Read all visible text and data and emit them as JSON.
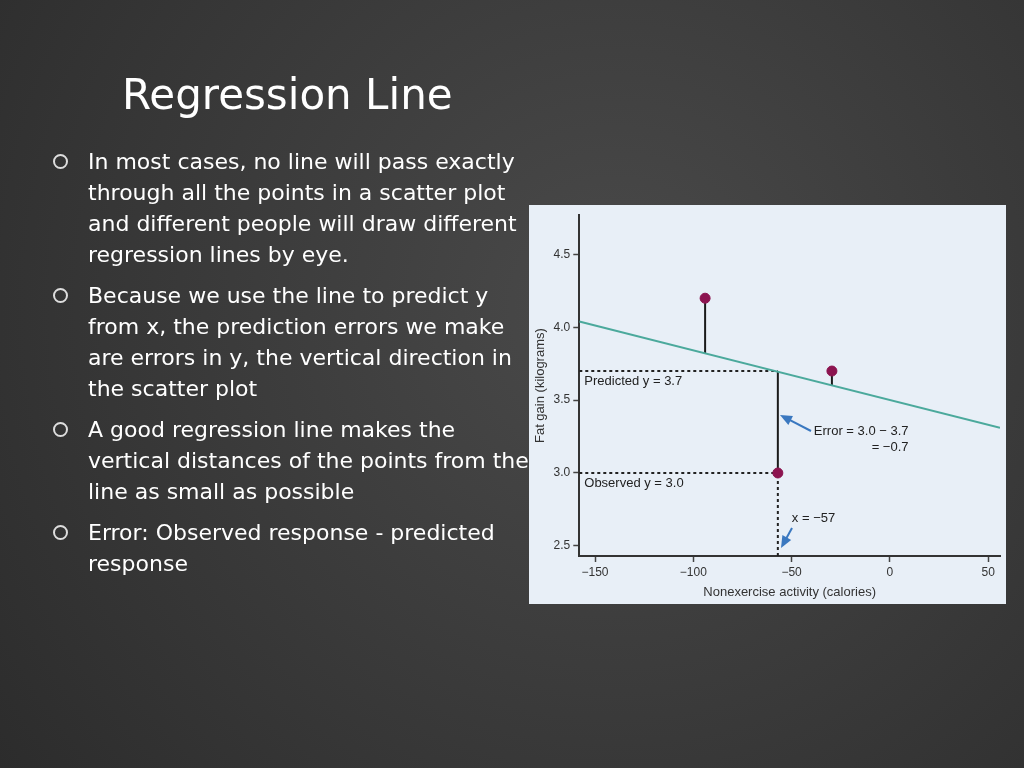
{
  "chart_data": {
    "type": "scatter",
    "title": "Regression Line",
    "xlabel": "Nonexercise activity (calories)",
    "ylabel": "Fat gain (kilograms)",
    "xlim": [
      -158,
      56
    ],
    "ylim": [
      2.43,
      4.77
    ],
    "xticks": [
      {
        "value": -150,
        "label": "−150"
      },
      {
        "value": -100,
        "label": "−100"
      },
      {
        "value": -50,
        "label": "−50"
      },
      0,
      50
    ],
    "yticks": [
      2.5,
      {
        "value": 3,
        "label": "3.0"
      },
      3.5,
      {
        "value": 4,
        "label": "4.0"
      },
      4.5
    ],
    "marker": "circle",
    "series": [
      {
        "type": "line",
        "x": [
          -158,
          56
        ],
        "values": [
          4.04,
          3.31
        ],
        "color": "#4ba99c",
        "marker": "none"
      },
      {
        "type": "scatter",
        "x": [
          -94,
          -57,
          -29.5
        ],
        "values": [
          4.2,
          3.0,
          3.7
        ],
        "color": "#8c1450",
        "errors": [
          [
            3.82,
            4.2
          ],
          [
            3.0,
            3.7
          ],
          [
            3.6,
            3.7
          ]
        ]
      }
    ],
    "ref_lines": [
      {
        "axis": "y",
        "value": 3.7,
        "label": "Predicted y = 3.7",
        "line_style": "dotted",
        "color": "#222222"
      },
      {
        "axis": "y",
        "value": 3.0,
        "label": "Observed y = 3.0",
        "line_style": "dotted",
        "color": "#222222"
      },
      {
        "axis": "x",
        "value": -57,
        "label": "x = −57",
        "line_style": "dotted",
        "color": "#222222"
      }
    ],
    "annotations": [
      "In most cases, no line will pass exactly through all the points in a scatter plot and different people will draw different regression lines by eye.",
      "Because we use the line to predict y from x, the prediction errors we make are errors in y, the vertical direction in the scatter plot",
      "A good regression line makes the vertical distances of the points from the line as small as possible",
      "Error: Observed response - predicted response",
      {
        "text": "Error = 3.0 − 3.7\n= −0.7",
        "x": -57,
        "y": 3.4
      }
    ]
  }
}
